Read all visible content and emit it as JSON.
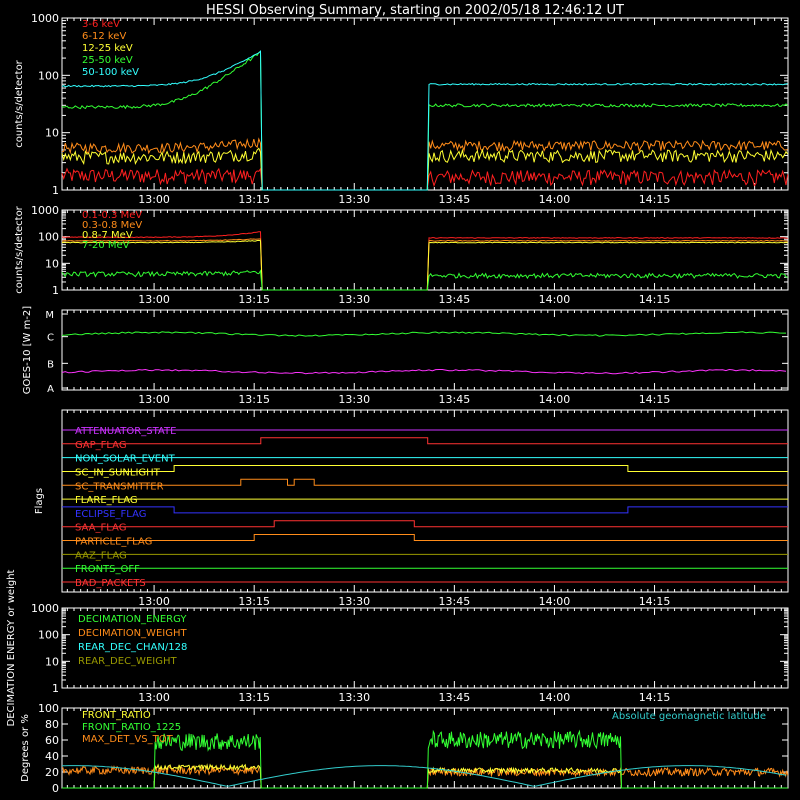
{
  "title": "HESSI Observing Summary, starting on 2002/05/18 12:46:12 UT",
  "time_axis": {
    "start": "12:46:12",
    "end": "14:35",
    "tick_labels": [
      "13:00",
      "13:15",
      "13:30",
      "13:45",
      "14:00",
      "14:15"
    ],
    "tick_times": [
      "13:00",
      "13:15",
      "13:30",
      "13:45",
      "14:00",
      "14:15"
    ]
  },
  "chart_data": [
    {
      "type": "line",
      "name": "front_rates",
      "ylabel": "counts/s/detector",
      "yscale": "log",
      "ylim": [
        1,
        1000
      ],
      "ytick_labels": [
        "1",
        "10",
        "100",
        "1000"
      ],
      "data_gap": [
        "13:16",
        "13:41"
      ],
      "series": [
        {
          "name": "3-6 keV",
          "color": "#ff2020",
          "values_before": 1.8,
          "values_after": 1.7
        },
        {
          "name": "6-12 keV",
          "color": "#ff8c1a",
          "values_before": 5.5,
          "values_after": 6.0
        },
        {
          "name": "12-25 keV",
          "color": "#ffff33",
          "values_before": 3.8,
          "values_after": 4.0
        },
        {
          "name": "25-50 keV",
          "color": "#33ff33",
          "values_before": 28,
          "values_after": 30
        },
        {
          "name": "50-100 keV",
          "color": "#33ffff",
          "values_before": 65,
          "values_after": 70
        }
      ]
    },
    {
      "type": "line",
      "name": "rear_rates",
      "ylabel": "counts/s/detector",
      "yscale": "log",
      "ylim": [
        1,
        1000
      ],
      "ytick_labels": [
        "1",
        "10",
        "100",
        "1000"
      ],
      "series": [
        {
          "name": "0.1-0.3 MeV",
          "color": "#ff2020",
          "values_before": 95,
          "values_after": 90
        },
        {
          "name": "0.3-0.8 MeV",
          "color": "#ff8c1a",
          "values_before": 70,
          "values_after": 70
        },
        {
          "name": "0.8-7 MeV",
          "color": "#ffff33",
          "values_before": 60,
          "values_after": 60
        },
        {
          "name": "7-20 MeV",
          "color": "#33ff33",
          "values_before": 4,
          "values_after": 3.5
        }
      ]
    },
    {
      "type": "line",
      "name": "goes",
      "ylabel": "GOES-10 [W m-2]",
      "yscale": "log",
      "ytick_labels": [
        "A",
        "B",
        "C",
        "M"
      ],
      "series": [
        {
          "name": "long",
          "color": "#33ff33",
          "level": 0.3
        },
        {
          "name": "short",
          "color": "#ff33ff",
          "level": 0.77
        }
      ]
    },
    {
      "type": "line",
      "name": "flags",
      "ylabel": "Flags",
      "series": [
        {
          "name": "ATTENUATOR_STATE",
          "color": "#cc33ff",
          "on": []
        },
        {
          "name": "GAP_FLAG",
          "color": "#ff3333",
          "on": [
            [
              "13:16",
              "13:41"
            ]
          ]
        },
        {
          "name": "NON_SOLAR_EVENT",
          "color": "#33ffff",
          "on": []
        },
        {
          "name": "SC_IN_SUNLIGHT",
          "color": "#ffff33",
          "on": [
            [
              "13:03",
              "14:11"
            ]
          ]
        },
        {
          "name": "SC_TRANSMITTER",
          "color": "#ff8c1a",
          "on": [
            [
              "13:13",
              "13:20"
            ],
            [
              "13:21",
              "13:24"
            ]
          ]
        },
        {
          "name": "FLARE_FLAG",
          "color": "#ffff33",
          "on": []
        },
        {
          "name": "ECLIPSE_FLAG",
          "color": "#3333ff",
          "on": [
            [
              "12:46",
              "13:03"
            ],
            [
              "14:11",
              "14:35"
            ]
          ]
        },
        {
          "name": "SAA_FLAG",
          "color": "#ff3333",
          "on": [
            [
              "13:18",
              "13:39"
            ]
          ]
        },
        {
          "name": "PARTICLE_FLAG",
          "color": "#ff8c1a",
          "on": [
            [
              "13:15",
              "13:39"
            ]
          ]
        },
        {
          "name": "AAZ_FLAG",
          "color": "#999900",
          "on": []
        },
        {
          "name": "FRONTS_OFF",
          "color": "#33ff33",
          "on": []
        },
        {
          "name": "BAD_PACKETS",
          "color": "#ff3333",
          "on": []
        }
      ]
    },
    {
      "type": "line",
      "name": "decimation",
      "ylabel": "DECIMATION ENERGY or weight",
      "yscale": "log",
      "ylim": [
        1,
        1000
      ],
      "ytick_labels": [
        "1",
        "10",
        "100",
        "1000"
      ],
      "series": [
        {
          "name": "DECIMATION_ENERGY",
          "color": "#33ff33"
        },
        {
          "name": "DECIMATION_WEIGHT",
          "color": "#ff8c1a"
        },
        {
          "name": "REAR_DEC_CHAN/128",
          "color": "#33ffff"
        },
        {
          "name": "REAR_DEC_WEIGHT",
          "color": "#999900"
        }
      ]
    },
    {
      "type": "line",
      "name": "ratios",
      "ylabel": "Degrees or %",
      "ylim": [
        0,
        100
      ],
      "ytick_labels": [
        "0",
        "20",
        "40",
        "60",
        "80",
        "100"
      ],
      "series": [
        {
          "name": "FRONT_RATIO",
          "color": "#ffff33",
          "values_before": 26,
          "values_after": 22
        },
        {
          "name": "FRONT_RATIO_1225",
          "color": "#33ff33",
          "values_before": 58,
          "values_after": 60
        },
        {
          "name": "MAX_DET_VS_TOT",
          "color": "#ff8c1a",
          "values_before": 22,
          "values_after": 20
        },
        {
          "name": "Absolute geomagnetic latitude",
          "color": "#33cccc",
          "lat_min": 2,
          "lat_max": 28
        }
      ]
    }
  ]
}
